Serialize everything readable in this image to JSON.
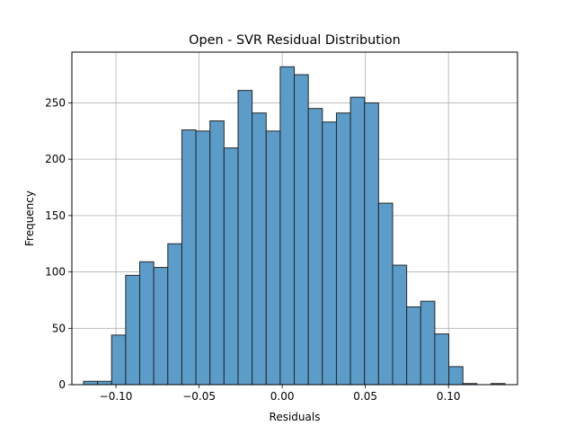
{
  "chart_data": {
    "type": "bar",
    "subtype": "histogram",
    "title": "Open - SVR Residual Distribution",
    "xlabel": "Residuals",
    "ylabel": "Frequency",
    "xlim": [
      -0.1265,
      0.1415
    ],
    "ylim": [
      0,
      295
    ],
    "grid": true,
    "bar_color": "#5b9cc9",
    "edge_color": "#262626",
    "grid_color": "#b0b0b0",
    "bin_start": -0.1195,
    "bin_width": 0.00845,
    "values": [
      3,
      3,
      44,
      97,
      109,
      104,
      125,
      226,
      225,
      234,
      210,
      261,
      241,
      225,
      282,
      275,
      245,
      233,
      241,
      255,
      250,
      161,
      106,
      69,
      74,
      45,
      16,
      1,
      0,
      1
    ],
    "x_ticks": [
      {
        "value": -0.1,
        "label": "−0.10"
      },
      {
        "value": -0.05,
        "label": "−0.05"
      },
      {
        "value": 0.0,
        "label": "0.00"
      },
      {
        "value": 0.05,
        "label": "0.05"
      },
      {
        "value": 0.1,
        "label": "0.10"
      }
    ],
    "y_ticks": [
      {
        "value": 0,
        "label": "0"
      },
      {
        "value": 50,
        "label": "50"
      },
      {
        "value": 100,
        "label": "100"
      },
      {
        "value": 150,
        "label": "150"
      },
      {
        "value": 200,
        "label": "200"
      },
      {
        "value": 250,
        "label": "250"
      }
    ]
  }
}
